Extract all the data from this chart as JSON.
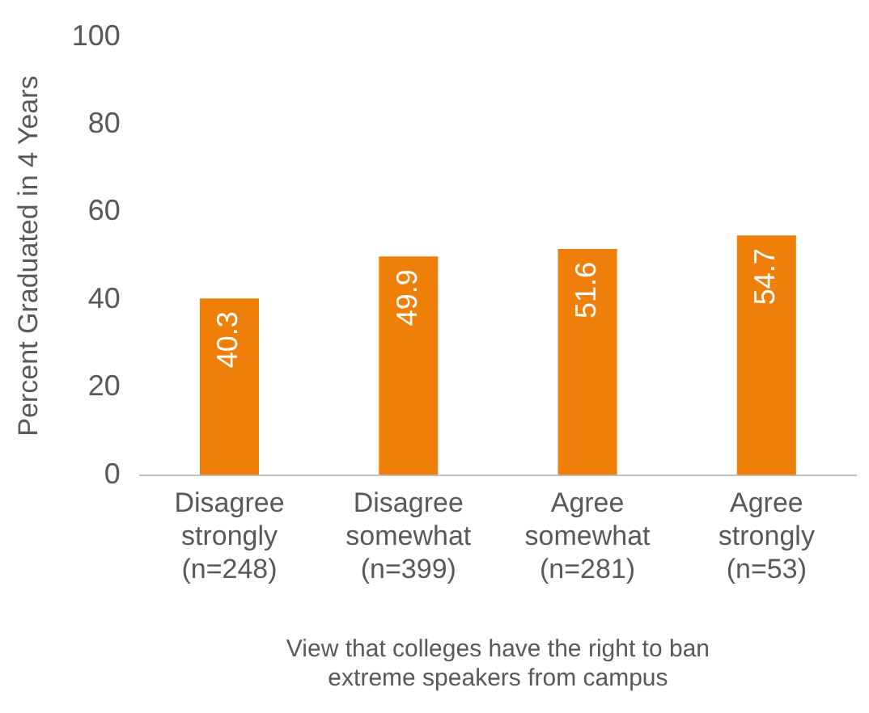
{
  "chart_data": {
    "type": "bar",
    "xlabel": "View that colleges have the right to ban extreme speakers from campus",
    "ylabel": "Percent Graduated in 4 Years",
    "categories": [
      "Disagree strongly (n=248)",
      "Disagree somewhat (n=399)",
      "Agree somewhat (n=281)",
      "Agree strongly (n=53)"
    ],
    "values": [
      40.3,
      49.9,
      51.6,
      54.7
    ],
    "color": "#f07f09",
    "ylim": [
      0,
      100
    ],
    "yticks": [
      0,
      20,
      40,
      60,
      80,
      100
    ],
    "grid": false,
    "legend": false,
    "data_labels": true
  }
}
